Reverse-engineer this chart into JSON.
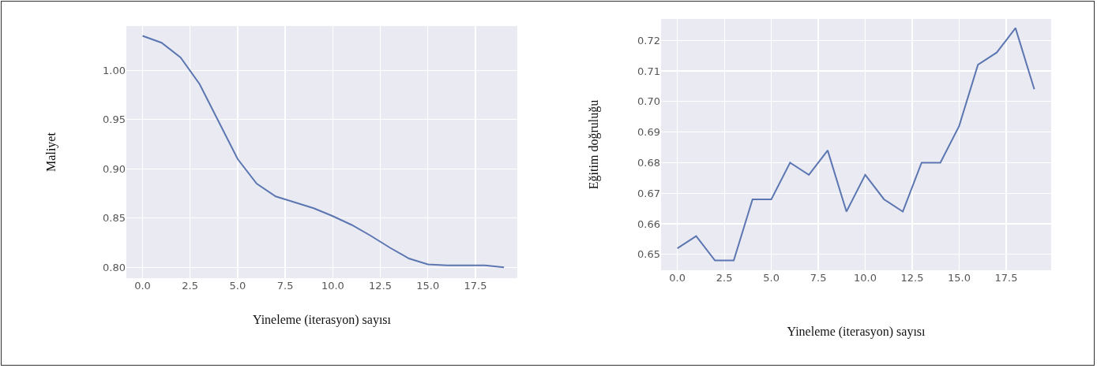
{
  "chart_data": [
    {
      "type": "line",
      "xlabel": "Yineleme (iterasyon) sayısı",
      "ylabel": "Maliyet",
      "color": "#5b76b1",
      "grid": true,
      "marker": "none",
      "line_style": "solid",
      "x": [
        0,
        1,
        2,
        3,
        4,
        5,
        6,
        7,
        8,
        9,
        10,
        11,
        12,
        13,
        14,
        15,
        16,
        17,
        18,
        19
      ],
      "values": [
        1.035,
        1.028,
        1.013,
        0.986,
        0.948,
        0.91,
        0.885,
        0.872,
        0.866,
        0.86,
        0.852,
        0.843,
        0.832,
        0.82,
        0.809,
        0.803,
        0.802,
        0.802,
        0.802,
        0.8
      ],
      "xlim": [
        -0.85,
        19.7
      ],
      "ylim": [
        0.789,
        1.045
      ],
      "xticks": [
        {
          "value": 0,
          "label": "0.0"
        },
        {
          "value": 2.5,
          "label": "2.5"
        },
        {
          "value": 5,
          "label": "5.0"
        },
        {
          "value": 7.5,
          "label": "7.5"
        },
        {
          "value": 10,
          "label": "10.0"
        },
        {
          "value": 12.5,
          "label": "12.5"
        },
        {
          "value": 15,
          "label": "15.0"
        },
        {
          "value": 17.5,
          "label": "17.5"
        }
      ],
      "yticks": [
        {
          "value": 0.8,
          "label": "0.80"
        },
        0.85,
        {
          "value": 0.9,
          "label": "0.90"
        },
        0.95,
        {
          "value": 1,
          "label": "1.00"
        }
      ]
    },
    {
      "type": "line",
      "xlabel": "Yineleme (iterasyon) sayısı",
      "ylabel": "Eğitim doğruluğu",
      "color": "#5b76b1",
      "grid": true,
      "marker": "none",
      "line_style": "solid",
      "x": [
        0,
        1,
        2,
        3,
        4,
        5,
        6,
        7,
        8,
        9,
        10,
        11,
        12,
        13,
        14,
        15,
        16,
        17,
        18,
        19
      ],
      "values": [
        0.652,
        0.656,
        0.648,
        0.648,
        0.668,
        0.668,
        0.68,
        0.676,
        0.684,
        0.664,
        0.676,
        0.668,
        0.664,
        0.68,
        0.68,
        0.692,
        0.712,
        0.716,
        0.724,
        0.704
      ],
      "xlim": [
        -0.87,
        19.9
      ],
      "ylim": [
        0.6448,
        0.727
      ],
      "xticks": [
        {
          "value": 0,
          "label": "0.0"
        },
        {
          "value": 2.5,
          "label": "2.5"
        },
        {
          "value": 5,
          "label": "5.0"
        },
        {
          "value": 7.5,
          "label": "7.5"
        },
        {
          "value": 10,
          "label": "10.0"
        },
        {
          "value": 12.5,
          "label": "12.5"
        },
        {
          "value": 15,
          "label": "15.0"
        },
        {
          "value": 17.5,
          "label": "17.5"
        }
      ],
      "yticks": [
        0.65,
        0.66,
        0.67,
        0.68,
        0.69,
        {
          "value": 0.7,
          "label": "0.70"
        },
        0.71,
        0.72
      ]
    }
  ]
}
